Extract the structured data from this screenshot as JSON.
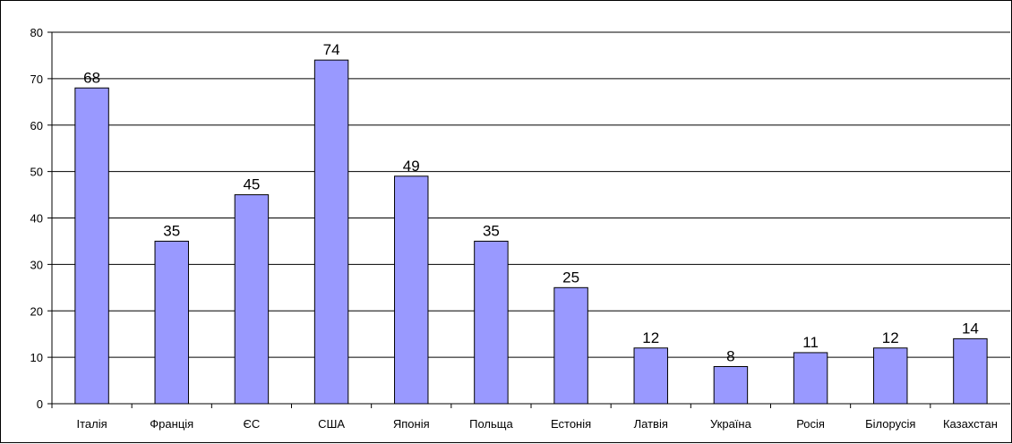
{
  "chart_data": {
    "type": "bar",
    "title": "",
    "xlabel": "",
    "ylabel": "",
    "categories": [
      "Італія",
      "Франція",
      "ЄС",
      "США",
      "Японія",
      "Польща",
      "Естонія",
      "Латвія",
      "Україна",
      "Росія",
      "Білорусія",
      "Казахстан"
    ],
    "values": [
      68,
      35,
      45,
      74,
      49,
      35,
      25,
      12,
      8,
      11,
      12,
      14
    ],
    "ylim": [
      0,
      80
    ],
    "yticks": [
      0,
      10,
      20,
      30,
      40,
      50,
      60,
      70,
      80
    ],
    "grid": "horizontal",
    "legend": "none",
    "data_labels": true,
    "bar_color": "#9999ff",
    "bar_edge_color": "#000000"
  }
}
